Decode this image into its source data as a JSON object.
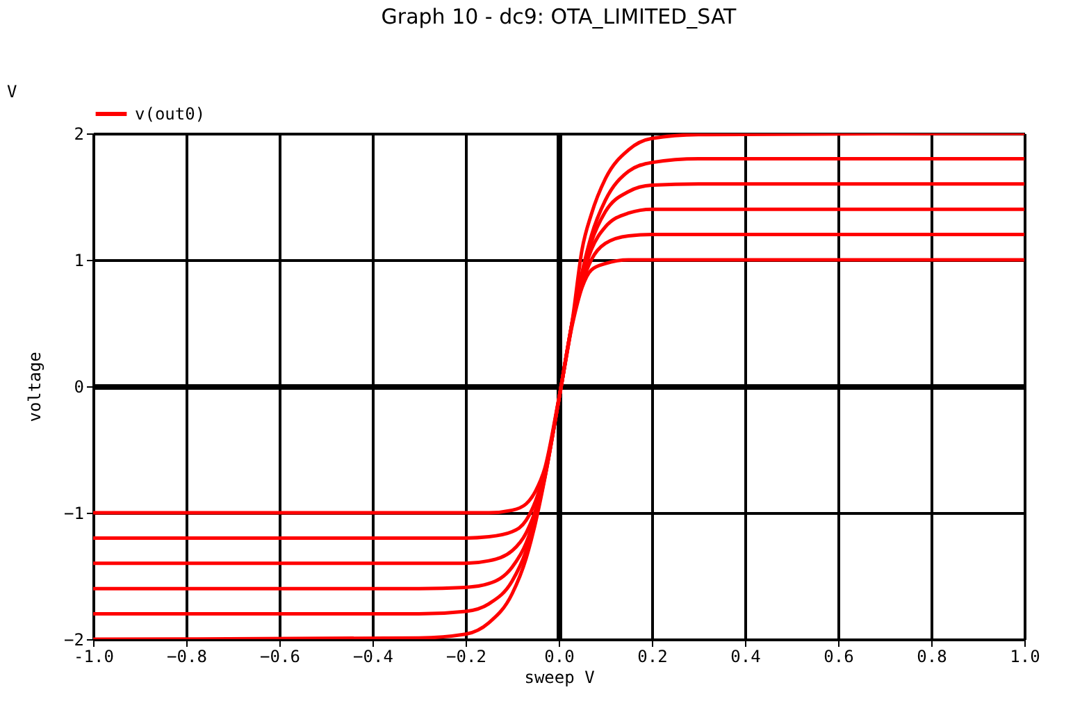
{
  "chart_data": {
    "type": "line",
    "title": "Graph 10 - dc9: OTA_LIMITED_SAT",
    "xlabel": "sweep  V",
    "ylabel": "voltage",
    "annotations": [
      "V"
    ],
    "x": [
      -1.0,
      -0.3,
      -0.2,
      -0.15,
      -0.1,
      -0.07,
      -0.05,
      -0.03,
      0.0,
      0.03,
      0.05,
      0.07,
      0.1,
      0.15,
      0.2,
      0.3,
      1.0
    ],
    "series": [
      {
        "name": "v(out0)",
        "color": "#ff0000",
        "values": [
          -1.0,
          -1.0,
          -1.0,
          -1.0,
          -0.98,
          -0.93,
          -0.83,
          -0.65,
          -0.1,
          0.5,
          0.78,
          0.92,
          0.97,
          1.0,
          1.0,
          1.0,
          1.0
        ]
      },
      {
        "color": "#ff0000",
        "values": [
          -1.2,
          -1.2,
          -1.2,
          -1.19,
          -1.15,
          -1.06,
          -0.91,
          -0.68,
          -0.11,
          0.52,
          0.81,
          1.0,
          1.13,
          1.19,
          1.2,
          1.2,
          1.2
        ]
      },
      {
        "color": "#ff0000",
        "values": [
          -1.4,
          -1.4,
          -1.4,
          -1.38,
          -1.3,
          -1.16,
          -0.98,
          -0.7,
          -0.11,
          0.52,
          0.85,
          1.08,
          1.26,
          1.37,
          1.4,
          1.4,
          1.4
        ]
      },
      {
        "color": "#ff0000",
        "values": [
          -1.6,
          -1.6,
          -1.59,
          -1.56,
          -1.43,
          -1.24,
          -1.02,
          -0.72,
          -0.11,
          0.53,
          0.88,
          1.14,
          1.38,
          1.54,
          1.59,
          1.6,
          1.6
        ]
      },
      {
        "color": "#ff0000",
        "values": [
          -1.8,
          -1.8,
          -1.78,
          -1.72,
          -1.54,
          -1.3,
          -1.05,
          -0.72,
          -0.11,
          0.53,
          0.9,
          1.19,
          1.47,
          1.7,
          1.77,
          1.8,
          1.8
        ]
      },
      {
        "color": "#ff0000",
        "values": [
          -2.0,
          -1.99,
          -1.96,
          -1.87,
          -1.64,
          -1.36,
          -1.08,
          -0.73,
          -0.11,
          0.54,
          1.08,
          1.36,
          1.64,
          1.87,
          1.96,
          1.99,
          2.0
        ]
      }
    ],
    "xlim": [
      -1.0,
      1.0
    ],
    "ylim": [
      -2,
      2
    ],
    "xticks": [
      {
        "value": -1.0,
        "label": "-1.0"
      },
      -0.8,
      -0.6,
      -0.4,
      -0.2,
      {
        "value": 0.0,
        "label": "0.0"
      },
      0.2,
      0.4,
      0.6,
      0.8,
      {
        "value": 1.0,
        "label": "1.0"
      }
    ],
    "yticks": [
      -2,
      -1,
      0,
      1,
      2
    ],
    "grid": true,
    "legend": "top left",
    "line_style": "solid",
    "marker": "none"
  }
}
